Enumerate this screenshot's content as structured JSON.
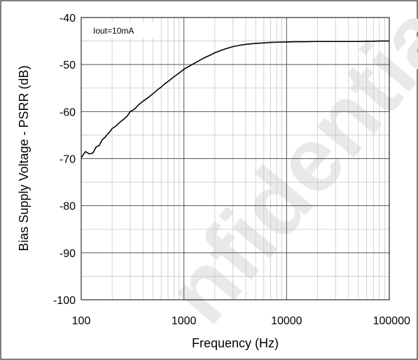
{
  "chart_data": {
    "type": "line",
    "title": "",
    "xlabel": "Frequency (Hz)",
    "ylabel": "Bias Supply Voltage - PSRR (dB)",
    "x_scale": "log",
    "xlim": [
      100,
      100000
    ],
    "ylim": [
      -100,
      -40
    ],
    "x_ticks": [
      100,
      1000,
      10000,
      100000
    ],
    "x_tick_labels": [
      "100",
      "1000",
      "10000",
      "100000"
    ],
    "y_ticks": [
      -100,
      -90,
      -80,
      -70,
      -60,
      -50,
      -40
    ],
    "y_tick_labels": [
      "-100",
      "-90",
      "-80",
      "-70",
      "-60",
      "-50",
      "-40"
    ],
    "grid": true,
    "annotation": "Iout=10mA",
    "watermark": "nfidential",
    "series": [
      {
        "name": "",
        "color": "#000000",
        "x": [
          100,
          110,
          120,
          130,
          140,
          150,
          160,
          170,
          180,
          190,
          200,
          220,
          240,
          260,
          280,
          300,
          330,
          360,
          400,
          450,
          500,
          550,
          600,
          650,
          700,
          800,
          900,
          1000,
          1200,
          1400,
          1600,
          1800,
          2000,
          2500,
          3000,
          3500,
          4000,
          5000,
          6000,
          7000,
          8000,
          10000,
          12000,
          15000,
          20000,
          30000,
          40000,
          50000,
          60000,
          70000,
          80000,
          90000,
          100000
        ],
        "y": [
          -69.8,
          -68.5,
          -69,
          -68.8,
          -67.5,
          -67.2,
          -66,
          -65.5,
          -64.8,
          -64.3,
          -63.6,
          -63,
          -62.2,
          -61.6,
          -61,
          -60,
          -59.5,
          -58.6,
          -57.8,
          -57,
          -56.2,
          -55.4,
          -54.8,
          -54.1,
          -53.6,
          -52.6,
          -51.8,
          -51,
          -50,
          -49.2,
          -48.5,
          -48,
          -47.5,
          -46.7,
          -46.2,
          -45.9,
          -45.7,
          -45.5,
          -45.4,
          -45.3,
          -45.25,
          -45.2,
          -45.15,
          -45.15,
          -45.1,
          -45.1,
          -45.1,
          -45.1,
          -45.05,
          -45.05,
          -45,
          -45,
          -45
        ]
      }
    ]
  }
}
